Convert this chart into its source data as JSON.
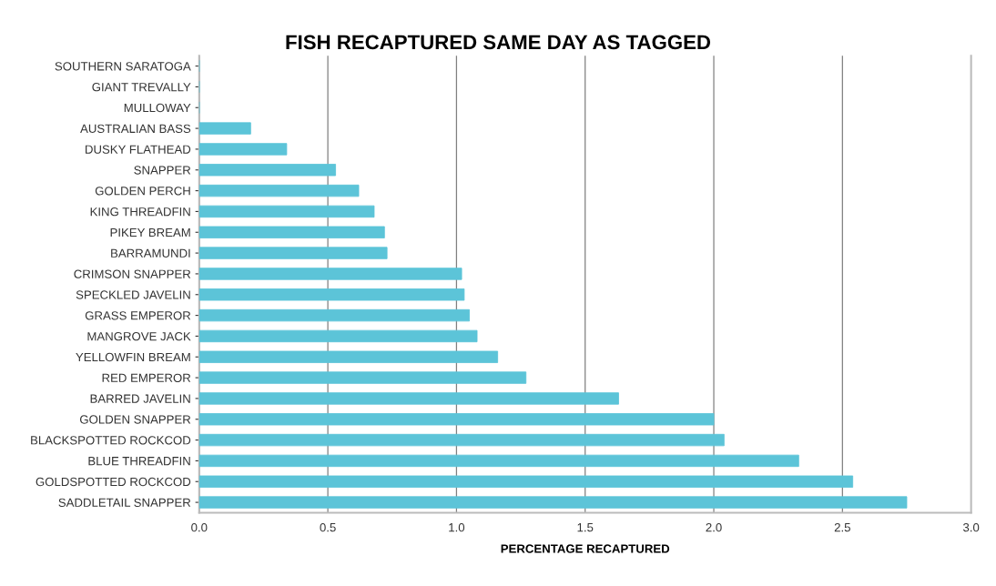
{
  "chart_data": {
    "type": "bar",
    "orientation": "horizontal",
    "title": "FISH RECAPTURED SAME DAY AS TAGGED",
    "xlabel": "PERCENTAGE RECAPTURED",
    "categories": [
      "SOUTHERN SARATOGA",
      "GIANT TREVALLY",
      "MULLOWAY",
      "AUSTRALIAN BASS",
      "DUSKY FLATHEAD",
      "SNAPPER",
      "GOLDEN PERCH",
      "KING THREADFIN",
      "PIKEY BREAM",
      "BARRAMUNDI",
      "CRIMSON SNAPPER",
      "SPECKLED JAVELIN",
      "GRASS EMPEROR",
      "MANGROVE JACK",
      "YELLOWFIN BREAM",
      "RED EMPEROR",
      "BARRED JAVELIN",
      "GOLDEN SNAPPER",
      "BLACKSPOTTED ROCKCOD",
      "BLUE THREADFIN",
      "GOLDSPOTTED ROCKCOD",
      "SADDLETAIL SNAPPER"
    ],
    "values": [
      0,
      0,
      0,
      0.2,
      0.34,
      0.53,
      0.62,
      0.68,
      0.72,
      0.73,
      1.02,
      1.03,
      1.05,
      1.08,
      1.16,
      1.27,
      1.63,
      2.0,
      2.04,
      2.33,
      2.54,
      2.75
    ],
    "color": "#5cc4d8",
    "xlim": [
      0,
      3.0
    ],
    "xticks": [
      {
        "value": 0,
        "label": "0.0"
      },
      {
        "value": 0.5,
        "label": "0.5"
      },
      {
        "value": 1.0,
        "label": "1.0"
      },
      {
        "value": 1.5,
        "label": "1.5"
      },
      {
        "value": 2.0,
        "label": "2.0"
      },
      {
        "value": 2.5,
        "label": "2.5"
      },
      {
        "value": 3.0,
        "label": "3.0"
      }
    ],
    "grid": "x"
  }
}
